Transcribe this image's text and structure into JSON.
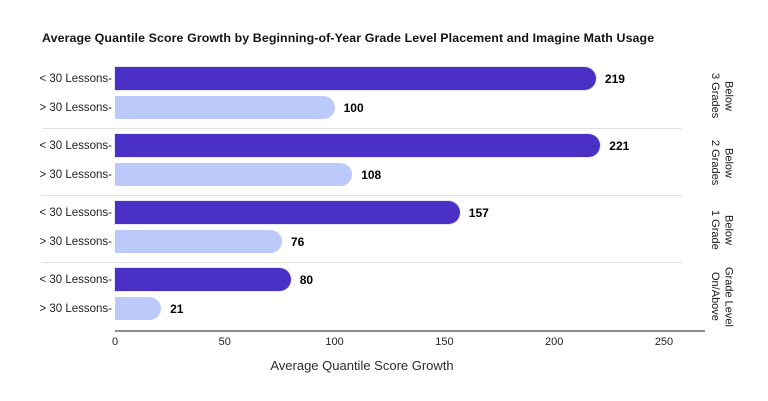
{
  "page": {
    "background": "#ffffff"
  },
  "chart_data": {
    "type": "bar",
    "orientation": "horizontal",
    "title": "Average Quantile Score Growth by Beginning-of-Year Grade Level Placement and Imagine Math Usage",
    "xlabel": "Average Quantile Score Growth",
    "xlim": [
      0,
      250
    ],
    "x_ticks": [
      0,
      50,
      100,
      150,
      200,
      250
    ],
    "grid": false,
    "legend_position": "none",
    "bar_style": "rounded-right-pill",
    "series": [
      {
        "name": "< 30 Lessons",
        "color": "#4a30c4"
      },
      {
        "name": "> 30 Lessons",
        "color": "#bcc9fb"
      }
    ],
    "groups": [
      {
        "label": "3 Grades Below",
        "label_lines": [
          "3 Grades",
          "Below"
        ],
        "rows": [
          {
            "tick_label": "< 30 Lessons-",
            "value": 219
          },
          {
            "tick_label": "> 30 Lessons-",
            "value": 100
          }
        ]
      },
      {
        "label": "2 Grades Below",
        "label_lines": [
          "2 Grades",
          "Below"
        ],
        "rows": [
          {
            "tick_label": "< 30 Lessons-",
            "value": 221
          },
          {
            "tick_label": "> 30 Lessons-",
            "value": 108
          }
        ]
      },
      {
        "label": "1 Grade Below",
        "label_lines": [
          "1 Grade",
          "Below"
        ],
        "rows": [
          {
            "tick_label": "< 30 Lessons-",
            "value": 157
          },
          {
            "tick_label": "> 30 Lessons-",
            "value": 76
          }
        ]
      },
      {
        "label": "On/Above Grade Level",
        "label_lines": [
          "On/Above",
          "Grade Level"
        ],
        "rows": [
          {
            "tick_label": "< 30 Lessons-",
            "value": 80
          },
          {
            "tick_label": "> 30 Lessons-",
            "value": 21
          }
        ]
      }
    ],
    "colors": {
      "separator": "#e2e2e2",
      "axis_line": "#8f8f8f",
      "title_text": "#131313",
      "value_text": "#000000"
    }
  }
}
